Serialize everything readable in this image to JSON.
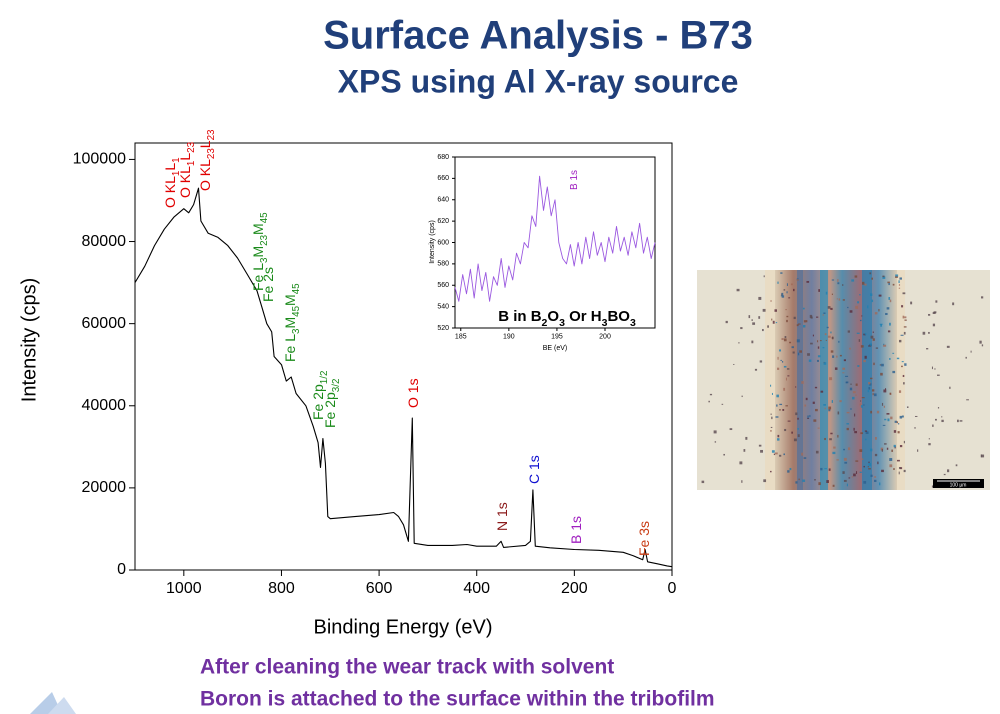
{
  "header": {
    "title": "Surface Analysis - B73",
    "subtitle": "XPS using Al X-ray source"
  },
  "chart_data": [
    {
      "type": "line",
      "x_label": "Binding Energy (eV)",
      "y_label": "Intensity (cps)",
      "color": "#000000",
      "x": [
        1100,
        1080,
        1060,
        1040,
        1020,
        1000,
        990,
        980,
        970,
        965,
        950,
        930,
        910,
        890,
        870,
        850,
        840,
        830,
        820,
        815,
        800,
        790,
        780,
        770,
        750,
        735,
        725,
        720,
        715,
        710,
        705,
        700,
        650,
        600,
        570,
        560,
        550,
        540,
        532,
        528,
        500,
        450,
        420,
        400,
        360,
        350,
        345,
        300,
        290,
        285,
        280,
        250,
        200,
        150,
        100,
        80,
        60,
        55,
        50,
        30,
        10,
        0
      ],
      "values": [
        70000,
        74000,
        79000,
        83000,
        86000,
        88000,
        87000,
        89000,
        93000,
        85000,
        82000,
        81000,
        79000,
        76000,
        72000,
        68000,
        64000,
        60000,
        58000,
        52000,
        50000,
        46000,
        47000,
        43000,
        40000,
        35000,
        31000,
        25000,
        32000,
        26000,
        13000,
        12500,
        13000,
        13500,
        14000,
        13000,
        11000,
        7000,
        37000,
        6500,
        6000,
        6000,
        6200,
        5800,
        5800,
        7000,
        5500,
        6000,
        7000,
        19500,
        5800,
        5400,
        5000,
        4800,
        4300,
        3500,
        2500,
        5000,
        2000,
        1500,
        1000,
        800
      ],
      "xlim": [
        1100,
        0
      ],
      "xticks": [
        1000,
        800,
        600,
        400,
        200,
        0
      ],
      "ylim": [
        0,
        104000
      ],
      "yticks": [
        0,
        20000,
        40000,
        60000,
        80000,
        100000
      ],
      "annotations": [
        {
          "text": [
            "O KL",
            "1",
            "L",
            "1"
          ],
          "color": "#e00000"
        },
        {
          "text": [
            "O KL",
            "1",
            "L",
            "23"
          ],
          "color": "#e00000"
        },
        {
          "text": [
            "O KL",
            "23",
            "L",
            "23"
          ],
          "color": "#e00000"
        },
        {
          "text": [
            "Fe L",
            "3",
            "M",
            "23",
            "M",
            "45"
          ],
          "color": "#1a8a1a"
        },
        {
          "text": [
            "Fe 2s"
          ],
          "color": "#1a8a1a"
        },
        {
          "text": [
            "Fe L",
            "3",
            "M",
            "45",
            "M",
            "45"
          ],
          "color": "#1a8a1a"
        },
        {
          "text": [
            "Fe 2p",
            "1/2"
          ],
          "color": "#1a8a1a"
        },
        {
          "text": [
            "Fe 2p",
            "3/2"
          ],
          "color": "#1a8a1a"
        },
        {
          "text": [
            "O 1s"
          ],
          "color": "#e00000"
        },
        {
          "text": [
            "N 1s"
          ],
          "color": "#8b1a1a"
        },
        {
          "text": [
            "C 1s"
          ],
          "color": "#1010d0"
        },
        {
          "text": [
            "B 1s"
          ],
          "color": "#a020c0"
        },
        {
          "text": [
            "Fe 3s"
          ],
          "color": "#c83c14"
        }
      ]
    },
    {
      "type": "line",
      "x_label": "BE (eV)",
      "y_label": "Intensity (cps)",
      "color": "#9b59e0",
      "x": [
        184.4,
        184.8,
        185.2,
        185.6,
        186.0,
        186.4,
        186.8,
        187.2,
        187.6,
        188.0,
        188.4,
        188.8,
        189.2,
        189.6,
        190.0,
        190.4,
        190.8,
        191.2,
        191.6,
        192.0,
        192.4,
        192.8,
        193.2,
        193.6,
        194.0,
        194.4,
        194.8,
        195.2,
        195.6,
        196.0,
        196.4,
        196.8,
        197.2,
        197.6,
        198.0,
        198.4,
        198.8,
        199.2,
        199.6,
        200.0,
        200.4,
        200.8,
        201.2,
        201.6,
        202.0,
        202.4,
        202.8,
        203.2,
        203.6,
        204.0,
        204.4,
        204.8,
        205.2
      ],
      "values": [
        558,
        545,
        570,
        552,
        575,
        548,
        580,
        555,
        572,
        545,
        568,
        560,
        585,
        558,
        578,
        565,
        590,
        580,
        600,
        595,
        625,
        615,
        662,
        630,
        652,
        625,
        640,
        600,
        585,
        580,
        598,
        578,
        600,
        580,
        605,
        585,
        610,
        588,
        600,
        582,
        605,
        590,
        615,
        592,
        605,
        588,
        610,
        595,
        618,
        590,
        605,
        585,
        600
      ],
      "xlim": [
        184.4,
        205.2
      ],
      "xticks": [
        185,
        190,
        195,
        200
      ],
      "ylim": [
        520,
        680
      ],
      "yticks": [
        520,
        540,
        560,
        580,
        600,
        620,
        640,
        660,
        680
      ],
      "annotations": [
        {
          "text": [
            "B 1s"
          ],
          "color": "#a020c0"
        },
        {
          "text": [
            "B in B",
            "2",
            "O",
            "3",
            " Or H",
            "3",
            "BO",
            "3"
          ],
          "color": "#000000"
        }
      ]
    }
  ],
  "micrograph": {
    "scale_label": "100 µm"
  },
  "footer": {
    "lines": [
      "After cleaning the wear track with solvent",
      "Boron is attached to the surface within the tribofilm"
    ]
  }
}
